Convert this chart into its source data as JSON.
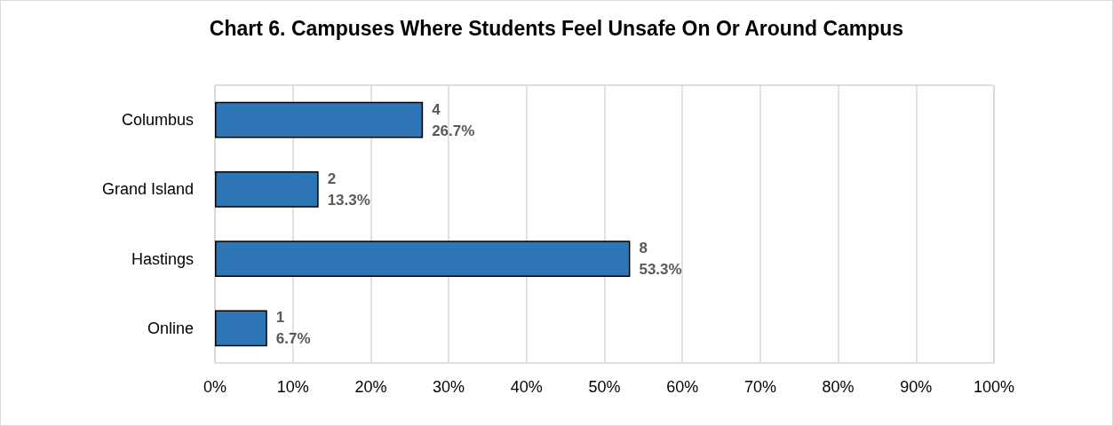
{
  "chart_data": {
    "type": "bar",
    "orientation": "horizontal",
    "title": "Chart 6. Campuses Where Students Feel Unsafe On Or Around Campus",
    "categories": [
      "Columbus",
      "Grand Island",
      "Hastings",
      "Online"
    ],
    "values": [
      26.7,
      13.3,
      53.3,
      6.7
    ],
    "value_labels": [
      "4\n26.7%",
      "2\n13.3%",
      "8\n53.3%",
      "1\n6.7%"
    ],
    "color": "#2e75b6",
    "xlim": [
      0,
      100
    ],
    "xticks": [
      {
        "value": 0,
        "label": "0%"
      },
      {
        "value": 10,
        "label": "10%"
      },
      {
        "value": 20,
        "label": "20%"
      },
      {
        "value": 30,
        "label": "30%"
      },
      {
        "value": 40,
        "label": "40%"
      },
      {
        "value": 50,
        "label": "50%"
      },
      {
        "value": 60,
        "label": "60%"
      },
      {
        "value": 70,
        "label": "70%"
      },
      {
        "value": 80,
        "label": "80%"
      },
      {
        "value": 90,
        "label": "90%"
      },
      {
        "value": 100,
        "label": "100%"
      }
    ],
    "grid": "x"
  }
}
